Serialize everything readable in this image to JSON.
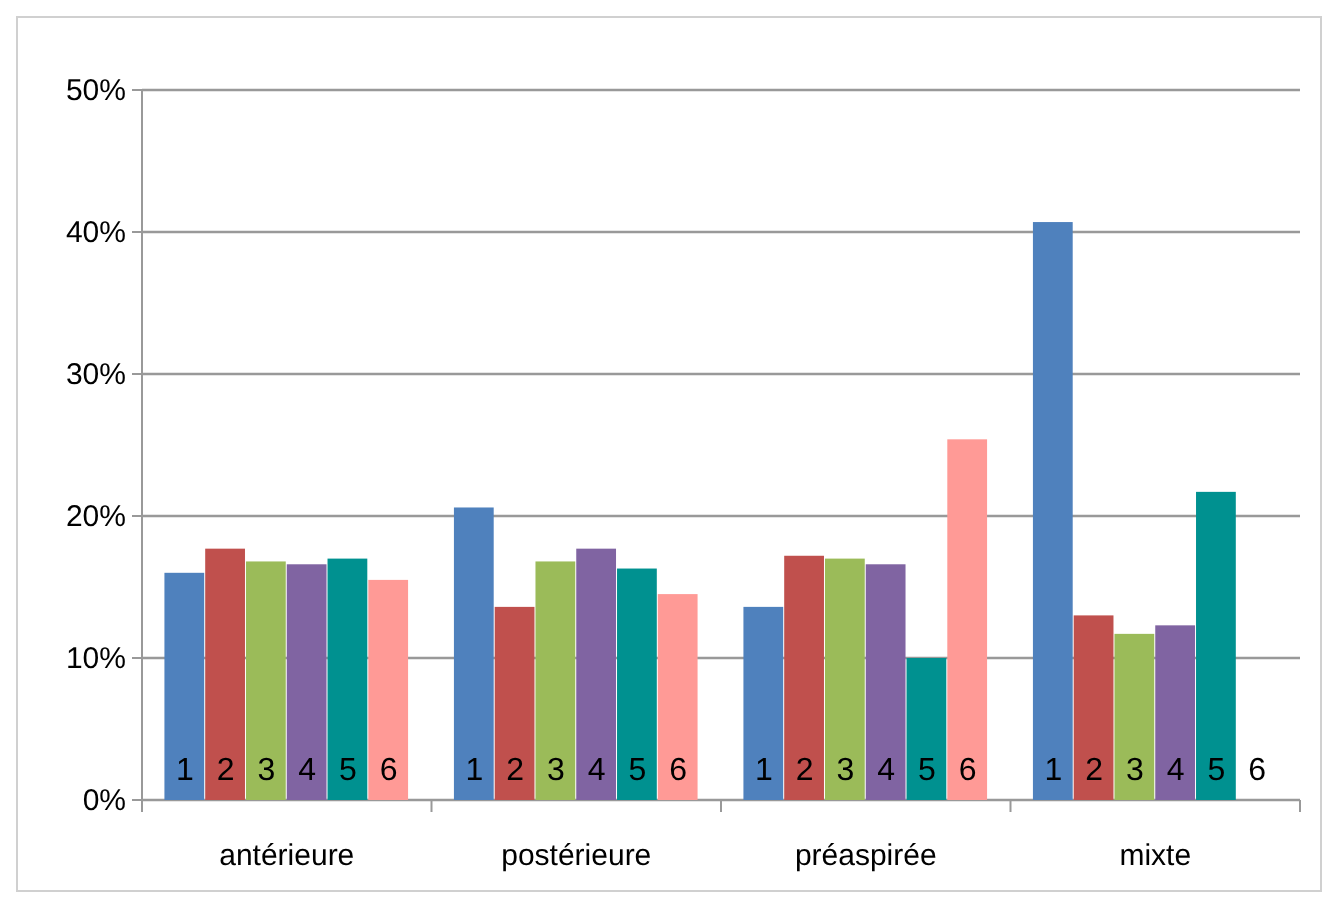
{
  "chart_data": {
    "type": "bar",
    "categories": [
      "antérieure",
      "postérieure",
      "préaspirée",
      "mixte"
    ],
    "series": [
      {
        "name": "1",
        "color": "#4f81bd",
        "values": [
          16.0,
          20.6,
          13.6,
          40.7
        ]
      },
      {
        "name": "2",
        "color": "#c0504d",
        "values": [
          17.7,
          13.6,
          17.2,
          13.0
        ]
      },
      {
        "name": "3",
        "color": "#9bbb59",
        "values": [
          16.8,
          16.8,
          17.0,
          11.7
        ]
      },
      {
        "name": "4",
        "color": "#8064a2",
        "values": [
          16.6,
          17.7,
          16.6,
          12.3
        ]
      },
      {
        "name": "5",
        "color": "#009190",
        "values": [
          17.0,
          16.3,
          10.0,
          21.7
        ]
      },
      {
        "name": "6",
        "color": "#ff9a96",
        "values": [
          15.5,
          14.5,
          25.4,
          0
        ]
      }
    ],
    "ylim": [
      0,
      50
    ],
    "yticks": [
      {
        "value": 0,
        "label": "0%"
      },
      {
        "value": 10,
        "label": "10%"
      },
      {
        "value": 20,
        "label": "20%"
      },
      {
        "value": 30,
        "label": "30%"
      },
      {
        "value": 40,
        "label": "40%"
      },
      {
        "value": 50,
        "label": "50%"
      }
    ],
    "grid": "y"
  }
}
